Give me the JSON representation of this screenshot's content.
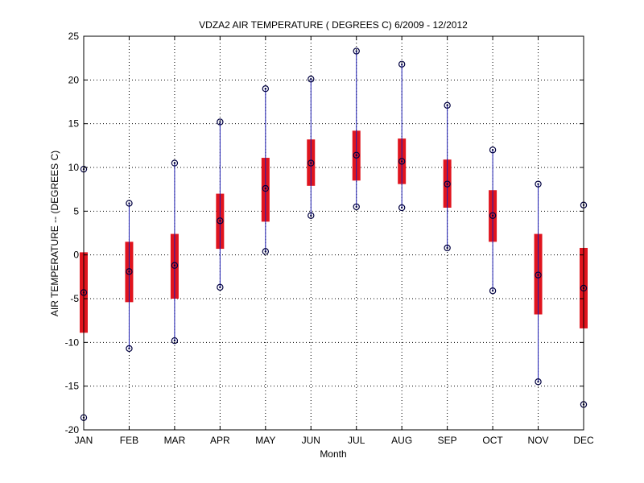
{
  "chart_data": {
    "type": "box",
    "title": "VDZA2  AIR TEMPERATURE ( DEGREES C) 6/2009 - 12/2012",
    "xlabel": "Month",
    "ylabel": "AIR TEMPERATURE -- (DEGREES C)",
    "ylim": [
      -20,
      25
    ],
    "yticks": [
      "-20",
      "-15",
      "-10",
      "-5",
      "0",
      "5",
      "10",
      "15",
      "20",
      "25"
    ],
    "grid": true,
    "categories": [
      "JAN",
      "FEB",
      "MAR",
      "APR",
      "MAY",
      "JUN",
      "JUL",
      "AUG",
      "SEP",
      "OCT",
      "NOV",
      "DEC"
    ],
    "series": [
      {
        "min": [
          -18.6,
          -10.7,
          -9.8,
          -3.7,
          0.4,
          4.5,
          5.5,
          5.4,
          0.8,
          -4.1,
          -14.5,
          -17.1
        ],
        "q1": [
          -8.9,
          -5.4,
          -5.0,
          0.7,
          3.8,
          7.9,
          8.5,
          8.1,
          5.4,
          1.5,
          -6.8,
          -8.4
        ],
        "median": [
          -4.3,
          -1.9,
          -1.2,
          3.9,
          7.6,
          10.5,
          11.4,
          10.7,
          8.1,
          4.5,
          -2.3,
          -3.8
        ],
        "q3": [
          0.3,
          1.5,
          2.4,
          7.0,
          11.1,
          13.2,
          14.2,
          13.3,
          10.9,
          7.4,
          2.4,
          0.8
        ],
        "max": [
          9.8,
          5.9,
          10.5,
          15.2,
          19.0,
          20.1,
          23.3,
          21.8,
          17.1,
          12.0,
          8.1,
          5.7
        ]
      }
    ],
    "colors": {
      "box": "#e0141e",
      "whisker": "#1c1cb0",
      "marker": "#000040",
      "grid": "#000000"
    }
  }
}
